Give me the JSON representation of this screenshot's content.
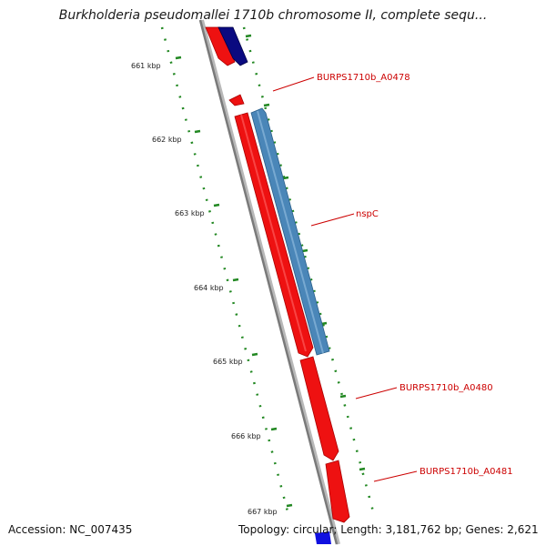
{
  "title": "Burkholderia pseudomallei 1710b chromosome II, complete sequ...",
  "footer": {
    "accession": "Accession: NC_007435",
    "summary": "Topology: circular; Length: 3,181,762 bp; Genes: 2,621"
  },
  "ticks": [
    {
      "label": "661 kbp"
    },
    {
      "label": "662 kbp"
    },
    {
      "label": "663 kbp"
    },
    {
      "label": "664 kbp"
    },
    {
      "label": "665 kbp"
    },
    {
      "label": "666 kbp"
    },
    {
      "label": "667 kbp"
    }
  ],
  "genes": [
    {
      "label": "BURPS1710b_A0478",
      "strand": "forward",
      "color": "#ee1111"
    },
    {
      "label": "nspC",
      "strand": "reverse",
      "color": "#4a86b8"
    },
    {
      "label": "BURPS1710b_A0480",
      "strand": "forward",
      "color": "#ee1111"
    },
    {
      "label": "BURPS1710b_A0481",
      "strand": "forward",
      "color": "#ee1111"
    }
  ],
  "colors": {
    "backbone": "#808080",
    "tick": "#228822",
    "forward_gene": "#ee1111",
    "reverse_gene": "#4a86b8",
    "dark_gene": "#0a0a80",
    "label": "#cc0000"
  }
}
